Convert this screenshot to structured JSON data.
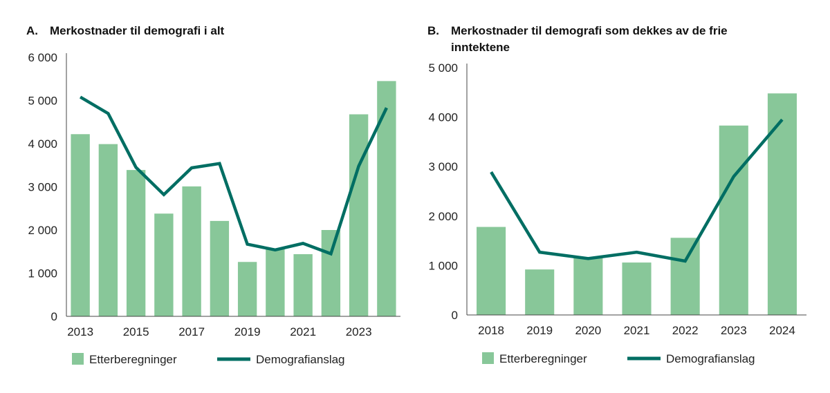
{
  "chart_data": [
    {
      "type": "bar",
      "panel_label": "A.",
      "title": "Merkostnader til demografi i alt",
      "categories": [
        "2013",
        "2014",
        "2015",
        "2016",
        "2017",
        "2018",
        "2019",
        "2020",
        "2021",
        "2022",
        "2023",
        "2024"
      ],
      "x_tick_labels": [
        "2013",
        "2015",
        "2017",
        "2019",
        "2021",
        "2023"
      ],
      "series": [
        {
          "name": "Etterberegninger",
          "kind": "bar",
          "color": "#88c799",
          "values": [
            4220,
            3990,
            3390,
            2380,
            3010,
            2210,
            1260,
            1560,
            1440,
            2000,
            4680,
            5450
          ]
        },
        {
          "name": "Demografianslag",
          "kind": "line",
          "color": "#006e63",
          "values": [
            5080,
            4700,
            3450,
            2820,
            3440,
            3540,
            1670,
            1540,
            1690,
            1450,
            3480,
            4830
          ]
        }
      ],
      "ylim": [
        0,
        6000
      ],
      "yticks": [
        0,
        1000,
        2000,
        3000,
        4000,
        5000,
        6000
      ],
      "ytick_labels": [
        "0",
        "1 000",
        "2 000",
        "3 000",
        "4 000",
        "5 000",
        "6 000"
      ],
      "legend": "bottom"
    },
    {
      "type": "bar",
      "panel_label": "B.",
      "title": "Merkostnader til demografi som dekkes av de frie inntektene",
      "categories": [
        "2018",
        "2019",
        "2020",
        "2021",
        "2022",
        "2023",
        "2024"
      ],
      "x_tick_labels": [
        "2018",
        "2019",
        "2020",
        "2021",
        "2022",
        "2023",
        "2024"
      ],
      "series": [
        {
          "name": "Etterberegninger",
          "kind": "bar",
          "color": "#88c799",
          "values": [
            1780,
            920,
            1160,
            1060,
            1560,
            3830,
            4480
          ]
        },
        {
          "name": "Demografianslag",
          "kind": "line",
          "color": "#006e63",
          "values": [
            2890,
            1270,
            1140,
            1270,
            1090,
            2800,
            3950
          ]
        }
      ],
      "ylim": [
        0,
        5000
      ],
      "yticks": [
        0,
        1000,
        2000,
        3000,
        4000,
        5000
      ],
      "ytick_labels": [
        "0",
        "1 000",
        "2 000",
        "3 000",
        "4 000",
        "5 000"
      ],
      "legend": "bottom"
    }
  ]
}
